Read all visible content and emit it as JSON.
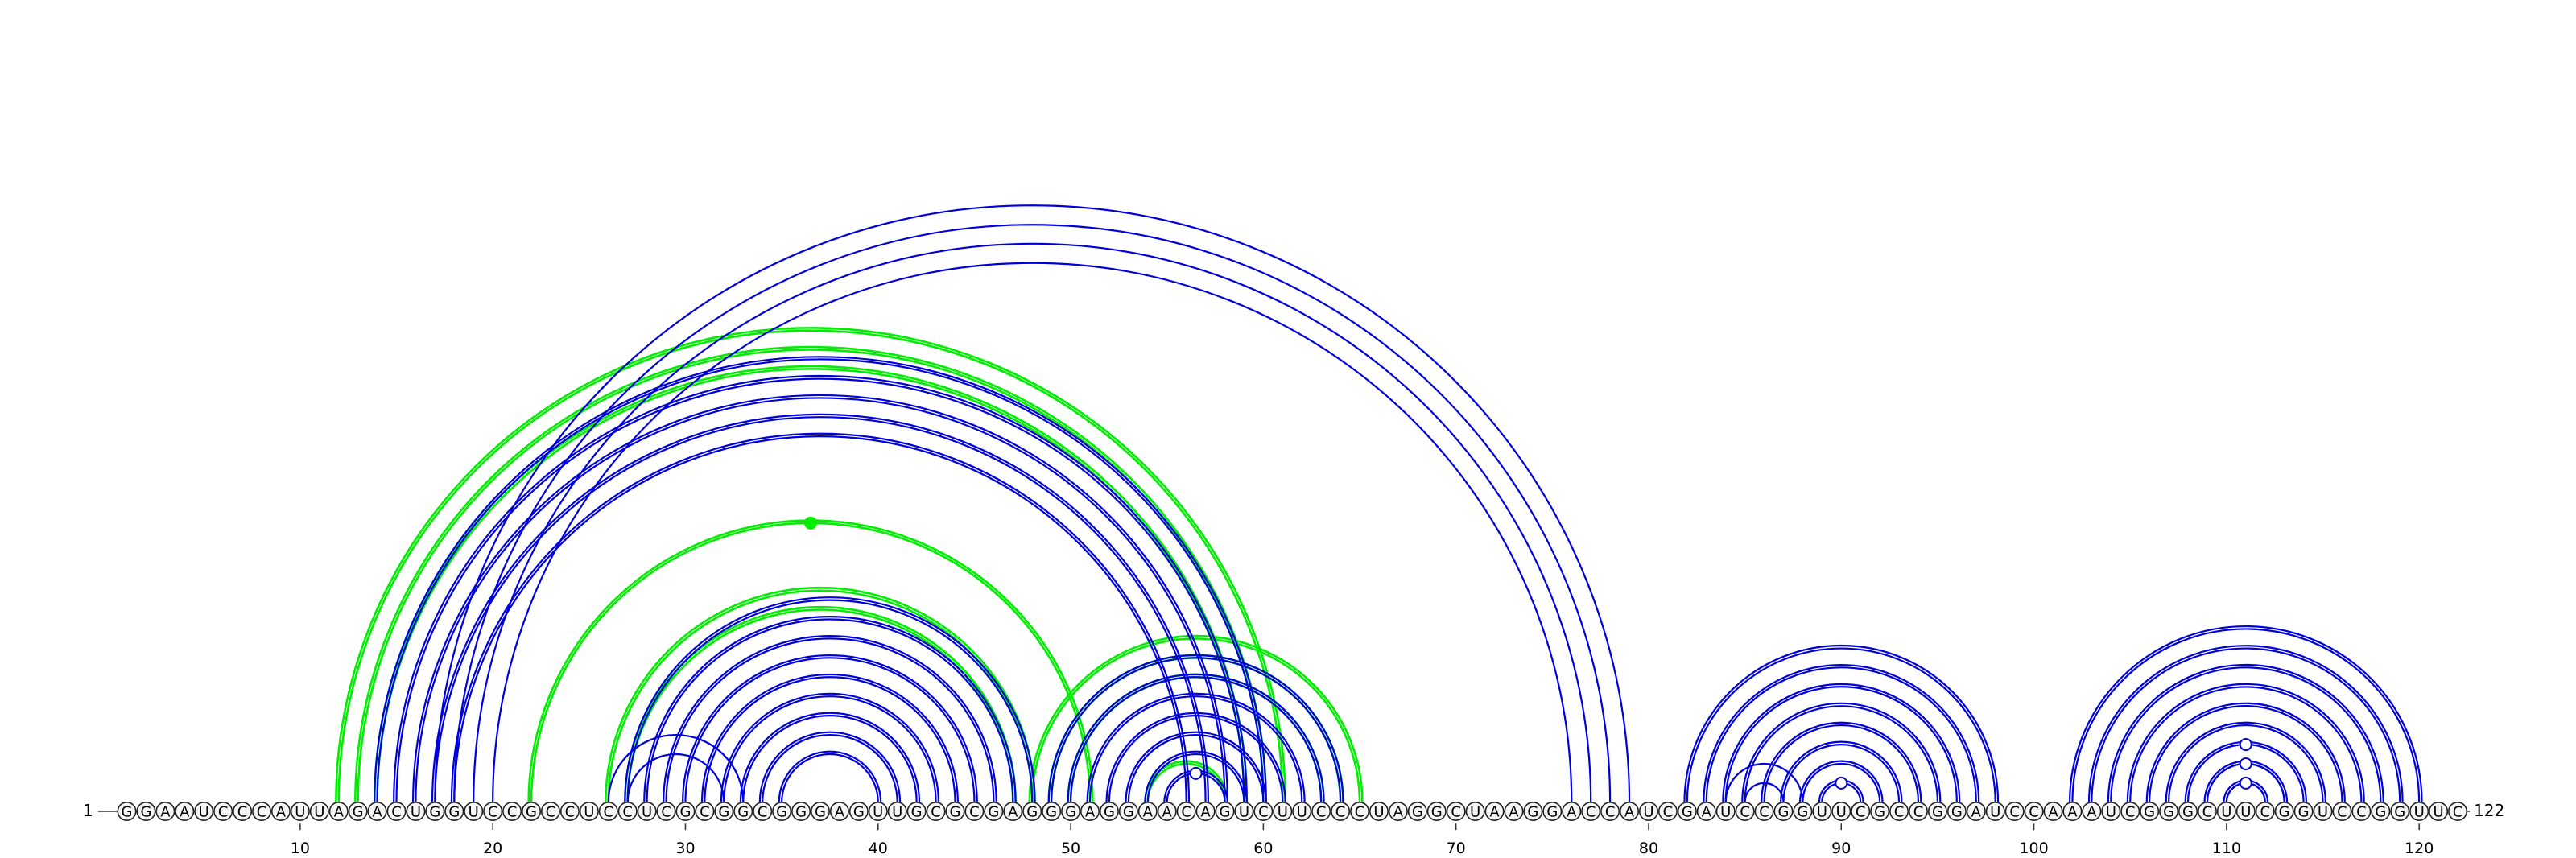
{
  "sequence": "GGAAUCCCAUUAGACUGGUCCGCCUCCUCGCGGCGGGAGUUGCGCGAGGGAGGAACAGUCUUCCCUAGGCUAAGGACCAUCGAUCCGGUUCGCCGGAUCCAAAUCGGGCUUCGGUCCGGUUC",
  "start_label": "1",
  "end_label": "122",
  "ticks": [
    "10",
    "20",
    "30",
    "40",
    "50",
    "60",
    "70",
    "80",
    "90",
    "100",
    "110",
    "120"
  ],
  "colors": {
    "blue": "#0000dd",
    "green": "#00ee00",
    "circle_fill": "#f5f5f5",
    "circle_stroke": "#222222"
  },
  "arcs": {
    "blue_single": [
      [
        17,
        79
      ],
      [
        18,
        78
      ],
      [
        19,
        77
      ],
      [
        20,
        76
      ],
      [
        26,
        33
      ],
      [
        27,
        32
      ],
      [
        84,
        88
      ],
      [
        85,
        87
      ],
      [
        109,
        113
      ],
      [
        110,
        112
      ]
    ],
    "blue": [
      [
        14,
        60
      ],
      [
        15,
        59
      ],
      [
        16,
        58
      ],
      [
        17,
        57
      ],
      [
        18,
        56
      ],
      [
        27,
        48
      ],
      [
        28,
        47
      ],
      [
        29,
        46
      ],
      [
        30,
        45
      ],
      [
        31,
        44
      ],
      [
        32,
        43
      ],
      [
        33,
        42
      ],
      [
        34,
        41
      ],
      [
        35,
        40
      ],
      [
        49,
        64
      ],
      [
        50,
        63
      ],
      [
        51,
        62
      ],
      [
        52,
        61
      ],
      [
        53,
        60
      ],
      [
        54,
        59
      ],
      [
        55,
        58
      ],
      [
        82,
        98
      ],
      [
        83,
        97
      ],
      [
        84,
        96
      ],
      [
        85,
        95
      ],
      [
        86,
        94
      ],
      [
        87,
        93
      ],
      [
        88,
        92
      ],
      [
        89,
        91
      ],
      [
        102,
        120
      ],
      [
        103,
        119
      ],
      [
        104,
        118
      ],
      [
        105,
        117
      ],
      [
        106,
        116
      ],
      [
        107,
        115
      ],
      [
        108,
        114
      ],
      [
        109,
        113
      ],
      [
        110,
        112
      ]
    ],
    "green": [
      [
        12,
        61
      ],
      [
        13,
        60
      ],
      [
        14,
        59
      ],
      [
        26,
        48
      ],
      [
        27,
        47
      ],
      [
        22,
        51
      ],
      [
        48,
        65
      ],
      [
        49,
        64
      ],
      [
        50,
        63
      ],
      [
        54,
        58
      ]
    ]
  },
  "markers": [
    {
      "between": [
        22,
        51
      ],
      "color": "#00ee00",
      "filled": true
    },
    {
      "between": [
        55,
        58
      ],
      "color": "#0000dd",
      "filled": false
    },
    {
      "between": [
        89,
        91
      ],
      "color": "#0000dd",
      "filled": false
    },
    {
      "between": [
        108,
        114
      ],
      "color": "#0000dd",
      "filled": false
    },
    {
      "between": [
        109,
        113
      ],
      "color": "#0000dd",
      "filled": false
    },
    {
      "between": [
        110,
        112
      ],
      "color": "#0000dd",
      "filled": false
    }
  ]
}
